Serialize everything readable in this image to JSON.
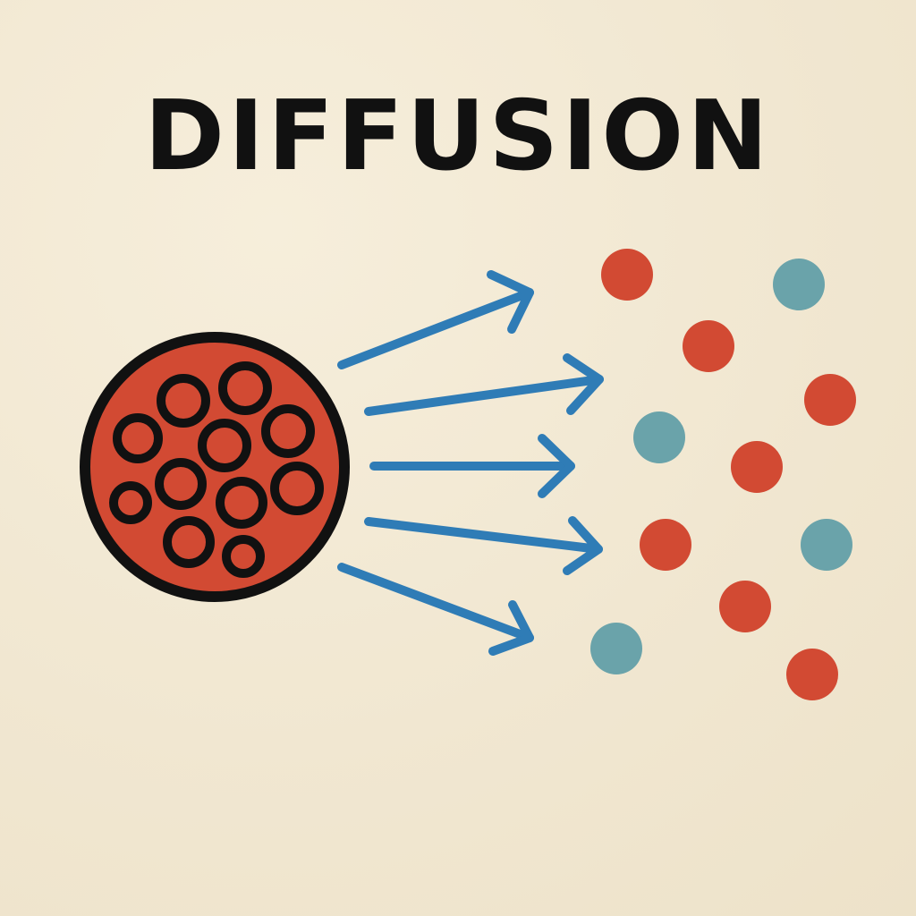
{
  "title": "DIFFUSION",
  "colors": {
    "background": "#f1e7d1",
    "source_fill": "#d24a33",
    "outline": "#111111",
    "arrow": "#2f7cb6",
    "particle_red": "#d24a33",
    "particle_teal": "#6aa3aa"
  },
  "icons": {
    "source": "concentrated-particle-cluster-icon",
    "arrows": "diffusion-arrow-icon",
    "particles": "dispersed-particle-icon"
  },
  "particles": [
    {
      "color": "red"
    },
    {
      "color": "teal"
    },
    {
      "color": "red"
    },
    {
      "color": "red"
    },
    {
      "color": "teal"
    },
    {
      "color": "red"
    },
    {
      "color": "red"
    },
    {
      "color": "teal"
    },
    {
      "color": "red"
    },
    {
      "color": "teal"
    },
    {
      "color": "red"
    }
  ]
}
